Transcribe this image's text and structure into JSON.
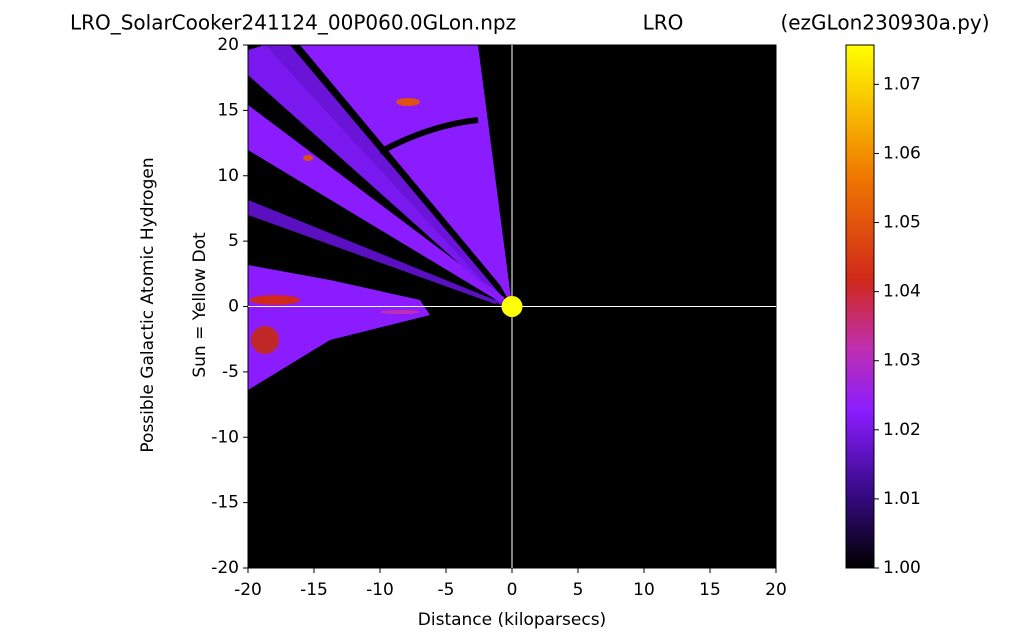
{
  "chart_data": {
    "type": "scatter",
    "titles": [
      "LRO_SolarCooker241124_00P060.0GLon.npz",
      "LRO",
      "(ezGLon230930a.py)"
    ],
    "xlabel": "Distance (kiloparsecs)",
    "ylabel": [
      "Possible Galactic Atomic Hydrogen",
      "Sun = Yellow Dot"
    ],
    "x": [
      0
    ],
    "values": [
      0
    ],
    "marker_color": "#ffff00",
    "xlim": [
      -20,
      20
    ],
    "ylim": [
      -20,
      20
    ],
    "xticks": [
      -20,
      -15,
      -10,
      -5,
      0,
      5,
      10,
      15,
      20
    ],
    "yticks": [
      -20,
      -15,
      -10,
      -5,
      0,
      5,
      10,
      15,
      20
    ],
    "colorbar": {
      "lim": [
        1.0,
        1.0757
      ],
      "ticks": [
        {
          "value": 1.0,
          "label": "1.00"
        },
        1.01,
        1.02,
        1.03,
        1.04,
        1.05,
        1.06,
        1.07
      ]
    }
  }
}
